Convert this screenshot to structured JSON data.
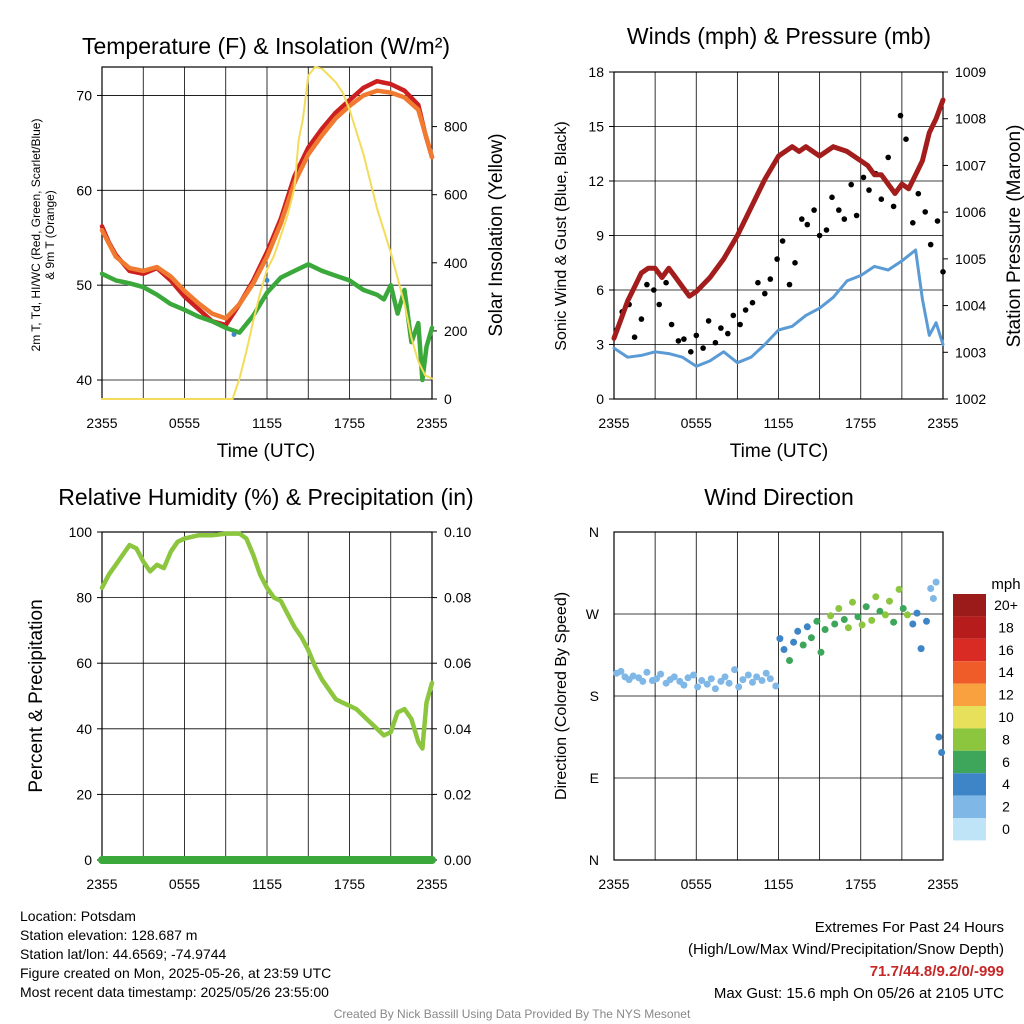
{
  "panels": {
    "temperature": {
      "title": "Temperature (F) & Insolation (W/m²)",
      "left_ylabel_line1": "2m T, Td, HI/WC (Red, Green, Scarlet/Blue)",
      "left_ylabel_line2": "& 9m T (Orange)",
      "right_ylabel": "Solar Insolation (Yellow)",
      "xlabel": "Time (UTC)"
    },
    "winds": {
      "title": "Winds (mph) & Pressure (mb)",
      "left_ylabel": "Sonic Wind & Gust (Blue, Black)",
      "right_ylabel": "Station Pressure (Maroon)",
      "xlabel": "Time (UTC)"
    },
    "humidity": {
      "title": "Relative Humidity (%) & Precipitation (in)",
      "left_ylabel": "Percent & Precipitation"
    },
    "direction": {
      "title": "Wind Direction",
      "left_ylabel": "Direction (Colored By Speed)",
      "legend_title": "mph"
    }
  },
  "colors": {
    "temp": "#cc2020",
    "nine_m_temp": "#f07a30",
    "dewpoint": "#3aa83a",
    "wind_chill": "#3f88c5",
    "insolation": "#f4dc5a",
    "pressure": "#a31d1d",
    "wind": "#5b9bd5",
    "gust": "#000000",
    "rh": "#8cc63f",
    "precip": "#3aa83a"
  },
  "info": {
    "location": "Location: Potsdam",
    "elevation": "Station elevation: 128.687 m",
    "latlon": "Station lat/lon: 44.6569; -74.9744",
    "created": "Figure created on Mon, 2025-05-26, at 23:59 UTC",
    "recent": "Most recent data timestamp: 2025/05/26 23:55:00"
  },
  "extremes": {
    "title": "Extremes For Past 24 Hours",
    "subtitle": "(High/Low/Max Wind/Precipitation/Snow Depth)",
    "values": "71.7/44.8/9.2/0/-999",
    "gust": "Max Gust: 15.6 mph On 05/26 at 2105 UTC"
  },
  "credit": "Created By Nick Bassill Using Data Provided By The NYS Mesonet",
  "chart_data": [
    {
      "type": "line",
      "title": "Temperature (F) & Insolation (W/m²)",
      "xlabel": "Time (UTC)",
      "ylabel": "2m T, Td, HI/WC (Red, Green, Scarlet/Blue) & 9m T (Orange)",
      "y2label": "Solar Insolation (Yellow)",
      "x_ticks": [
        "2355",
        "0555",
        "1155",
        "1755",
        "2355"
      ],
      "xlim_hours": [
        0,
        24
      ],
      "ylim": [
        38,
        73
      ],
      "y_ticks": [
        40,
        50,
        60,
        70
      ],
      "y2lim": [
        0,
        975
      ],
      "y2_ticks": [
        0,
        200,
        400,
        600,
        800
      ],
      "grid": true,
      "series": [
        {
          "name": "2m T",
          "color": "#cc2020",
          "axis": "left",
          "x": [
            0,
            0.5,
            1,
            2,
            3,
            4,
            5,
            6,
            7,
            8,
            9,
            10,
            11,
            12,
            13,
            14,
            15,
            16,
            17,
            18,
            19,
            20,
            21,
            22,
            23,
            23.5,
            24
          ],
          "y": [
            56.2,
            54.5,
            53.2,
            51.5,
            51.2,
            51.8,
            50.5,
            48.8,
            47.5,
            46.2,
            45.8,
            48.0,
            50.5,
            53.5,
            57.0,
            61.5,
            64.5,
            66.5,
            68.2,
            69.5,
            70.8,
            71.5,
            71.2,
            70.5,
            69.0,
            66.0,
            63.5
          ]
        },
        {
          "name": "9m T",
          "color": "#f07a30",
          "axis": "left",
          "x": [
            0,
            1,
            2,
            3,
            4,
            5,
            6,
            7,
            8,
            9,
            10,
            11,
            12,
            13,
            14,
            15,
            16,
            17,
            18,
            19,
            20,
            21,
            22,
            23,
            24
          ],
          "y": [
            55.8,
            53.0,
            51.8,
            51.5,
            51.9,
            50.9,
            49.4,
            48.1,
            47.0,
            46.5,
            48.0,
            50.2,
            53.0,
            56.5,
            60.8,
            63.8,
            65.8,
            67.6,
            68.9,
            70.0,
            70.5,
            70.3,
            69.8,
            68.5,
            63.5
          ]
        },
        {
          "name": "2m Td",
          "color": "#3aa83a",
          "axis": "left",
          "x": [
            0,
            1,
            2,
            3,
            4,
            5,
            6,
            7,
            8,
            9,
            10,
            11,
            12,
            13,
            14,
            15,
            16,
            17,
            18,
            19,
            20,
            20.5,
            21,
            21.5,
            22,
            22.5,
            23,
            23.3,
            23.6,
            24
          ],
          "y": [
            51.2,
            50.5,
            50.2,
            49.8,
            49.0,
            48.0,
            47.4,
            46.7,
            46.2,
            45.5,
            45.0,
            46.8,
            49.2,
            50.8,
            51.5,
            52.2,
            51.5,
            51.0,
            50.5,
            49.5,
            49.0,
            48.5,
            50.0,
            47.0,
            49.5,
            44.0,
            46.0,
            40.0,
            43.5,
            45.5
          ]
        },
        {
          "name": "HI/WC",
          "color": "#3f88c5",
          "axis": "left",
          "x": [
            9.6,
            12
          ],
          "y": [
            44.8,
            50.5
          ]
        },
        {
          "name": "Solar Insolation",
          "color": "#f4dc5a",
          "axis": "right",
          "x": [
            0,
            1,
            2,
            3,
            4,
            5,
            6,
            7,
            8,
            9,
            9.5,
            10,
            10.5,
            11,
            11.5,
            12,
            12.5,
            13,
            13.5,
            14,
            14.3,
            14.6,
            15,
            15.5,
            16,
            16.5,
            17,
            17.5,
            18,
            19,
            20,
            21,
            22,
            22.5,
            23,
            23.5,
            24
          ],
          "y": [
            0,
            0,
            0,
            0,
            0,
            0,
            0,
            0,
            0,
            0,
            0,
            60,
            140,
            230,
            310,
            380,
            420,
            480,
            540,
            620,
            760,
            820,
            950,
            975,
            970,
            950,
            930,
            900,
            850,
            720,
            560,
            430,
            280,
            180,
            110,
            70,
            60
          ]
        }
      ]
    },
    {
      "type": "line",
      "title": "Winds (mph) & Pressure (mb)",
      "xlabel": "Time (UTC)",
      "ylabel": "Sonic Wind & Gust (Blue, Black)",
      "y2label": "Station Pressure (Maroon)",
      "x_ticks": [
        "2355",
        "0555",
        "1155",
        "1755",
        "2355"
      ],
      "xlim_hours": [
        0,
        24
      ],
      "ylim": [
        0,
        18
      ],
      "y_ticks": [
        0,
        3,
        6,
        9,
        12,
        15,
        18
      ],
      "y2lim": [
        1002,
        1009
      ],
      "y2_ticks": [
        1002,
        1003,
        1004,
        1005,
        1006,
        1007,
        1008,
        1009
      ],
      "grid": true,
      "series": [
        {
          "name": "Sonic Wind",
          "color": "#5b9bd5",
          "axis": "left",
          "x": [
            0,
            1,
            2,
            3,
            4,
            5,
            6,
            7,
            8,
            9,
            10,
            11,
            12,
            13,
            14,
            15,
            16,
            17,
            18,
            19,
            20,
            21,
            22,
            22.5,
            23,
            23.5,
            24
          ],
          "y": [
            2.8,
            2.3,
            2.4,
            2.6,
            2.5,
            2.3,
            1.8,
            2.1,
            2.6,
            2.0,
            2.3,
            3.0,
            3.8,
            4.0,
            4.6,
            5.0,
            5.6,
            6.5,
            6.8,
            7.3,
            7.1,
            7.6,
            8.2,
            5.5,
            3.5,
            4.2,
            3.0
          ]
        },
        {
          "name": "Gust",
          "color": "#000000",
          "axis": "left",
          "style": "points",
          "x": [
            0.2,
            0.6,
            1.1,
            1.5,
            2.0,
            2.4,
            2.9,
            3.3,
            3.8,
            4.2,
            4.7,
            5.1,
            5.6,
            6.0,
            6.5,
            6.9,
            7.4,
            7.8,
            8.3,
            8.7,
            9.2,
            9.6,
            10.1,
            10.5,
            11.0,
            11.4,
            11.9,
            12.3,
            12.8,
            13.2,
            13.7,
            14.1,
            14.6,
            15.0,
            15.5,
            15.9,
            16.4,
            16.8,
            17.3,
            17.7,
            18.2,
            18.6,
            19.1,
            19.5,
            20.0,
            20.4,
            20.9,
            21.3,
            21.8,
            22.2,
            22.7,
            23.1,
            23.6,
            24.0
          ],
          "y": [
            3.8,
            4.8,
            5.2,
            3.4,
            4.4,
            6.3,
            6.0,
            5.2,
            6.4,
            4.1,
            3.2,
            3.3,
            2.6,
            3.5,
            2.8,
            4.3,
            3.1,
            3.9,
            3.6,
            4.6,
            4.1,
            4.9,
            5.3,
            6.4,
            5.8,
            6.6,
            7.7,
            8.7,
            6.3,
            7.5,
            9.9,
            9.6,
            10.4,
            9.0,
            9.3,
            11.1,
            10.4,
            9.9,
            11.8,
            10.1,
            12.2,
            11.5,
            12.4,
            11.0,
            13.3,
            10.6,
            15.6,
            14.3,
            9.7,
            11.3,
            10.3,
            8.5,
            9.8,
            7.0
          ]
        },
        {
          "name": "Station Pressure",
          "color": "#a31d1d",
          "axis": "right",
          "x": [
            0,
            0.5,
            1,
            1.5,
            2,
            2.5,
            3,
            3.5,
            4,
            4.5,
            5,
            5.5,
            6,
            7,
            8,
            9,
            10,
            11,
            12,
            13,
            13.5,
            14,
            15,
            16,
            17,
            18,
            18.5,
            19,
            19.5,
            20,
            20.5,
            21,
            21.5,
            22,
            22.5,
            23,
            23.5,
            24
          ],
          "y": [
            1003.3,
            1003.7,
            1004.1,
            1004.4,
            1004.7,
            1004.8,
            1004.8,
            1004.6,
            1004.8,
            1004.6,
            1004.4,
            1004.2,
            1004.3,
            1004.6,
            1005.0,
            1005.5,
            1006.1,
            1006.7,
            1007.2,
            1007.4,
            1007.3,
            1007.4,
            1007.2,
            1007.4,
            1007.3,
            1007.1,
            1007.0,
            1006.8,
            1006.8,
            1006.6,
            1006.4,
            1006.6,
            1006.5,
            1006.8,
            1007.1,
            1007.7,
            1008.0,
            1008.4
          ]
        }
      ]
    },
    {
      "type": "line",
      "title": "Relative Humidity (%) & Precipitation (in)",
      "ylabel": "Percent & Precipitation",
      "x_ticks": [
        "2355",
        "0555",
        "1155",
        "1755",
        "2355"
      ],
      "xlim_hours": [
        0,
        24
      ],
      "ylim": [
        0,
        100
      ],
      "y_ticks": [
        0,
        20,
        40,
        60,
        80,
        100
      ],
      "y2lim": [
        0,
        0.1
      ],
      "y2_ticks": [
        "0.00",
        "0.02",
        "0.04",
        "0.06",
        "0.08",
        "0.10"
      ],
      "grid": true,
      "series": [
        {
          "name": "Relative Humidity",
          "color": "#8cc63f",
          "axis": "left",
          "x": [
            0,
            0.5,
            1,
            1.5,
            2,
            2.5,
            3,
            3.5,
            4,
            4.5,
            5,
            5.5,
            6,
            7,
            8,
            9,
            10,
            10.5,
            11,
            11.5,
            12,
            12.5,
            13,
            13.5,
            14,
            14.5,
            15,
            15.5,
            16,
            16.5,
            17,
            17.5,
            18,
            18.5,
            19,
            19.5,
            20,
            20.5,
            21,
            21.5,
            22,
            22.5,
            23,
            23.3,
            23.6,
            24
          ],
          "y": [
            83,
            87,
            90,
            93,
            96,
            95,
            91,
            88,
            90,
            89,
            94,
            97,
            98,
            99,
            99,
            99.5,
            99.5,
            98,
            93,
            87,
            83,
            80,
            79,
            75,
            71,
            68,
            64,
            59,
            55,
            52,
            49,
            48,
            47,
            46,
            44,
            42,
            40,
            38,
            39,
            45,
            46,
            43,
            36,
            34,
            48,
            54
          ]
        },
        {
          "name": "Precipitation",
          "color": "#3aa83a",
          "axis": "right",
          "x": [
            0,
            24
          ],
          "y": [
            0,
            0
          ]
        }
      ]
    },
    {
      "type": "scatter",
      "title": "Wind Direction",
      "ylabel": "Direction (Colored By Speed)",
      "x_ticks": [
        "2355",
        "0555",
        "1155",
        "1755",
        "2355"
      ],
      "xlim_hours": [
        0,
        24
      ],
      "y_ticks": [
        "N",
        "E",
        "S",
        "W",
        "N"
      ],
      "ylim_degrees": [
        0,
        360
      ],
      "legend_title": "mph",
      "legend_placement": "right",
      "color_scale": [
        {
          "label": "20+",
          "color": "#9b1b1b"
        },
        {
          "label": "18",
          "color": "#b71c1c"
        },
        {
          "label": "16",
          "color": "#d92a24"
        },
        {
          "label": "14",
          "color": "#ef5c2a"
        },
        {
          "label": "12",
          "color": "#f9a03f"
        },
        {
          "label": "10",
          "color": "#e6e05a"
        },
        {
          "label": "8",
          "color": "#8cc63f"
        },
        {
          "label": "6",
          "color": "#3ea65b"
        },
        {
          "label": "4",
          "color": "#3d85c6"
        },
        {
          "label": "2",
          "color": "#7fb8e6"
        },
        {
          "label": "0",
          "color": "#bfe3f7"
        }
      ],
      "points": {
        "x": [
          0.2,
          0.5,
          0.8,
          1.1,
          1.4,
          1.8,
          2.1,
          2.4,
          2.8,
          3.1,
          3.4,
          3.8,
          4.1,
          4.4,
          4.8,
          5.1,
          5.4,
          5.8,
          6.1,
          6.4,
          6.8,
          7.1,
          7.4,
          7.8,
          8.1,
          8.4,
          8.8,
          9.1,
          9.4,
          9.8,
          10.1,
          10.4,
          10.8,
          11.1,
          11.4,
          11.8,
          12.1,
          12.4,
          12.8,
          13.1,
          13.4,
          13.8,
          14.1,
          14.4,
          14.8,
          15.1,
          15.4,
          15.8,
          16.1,
          16.4,
          16.8,
          17.1,
          17.4,
          17.8,
          18.1,
          18.4,
          18.8,
          19.1,
          19.4,
          19.8,
          20.1,
          20.4,
          20.8,
          21.1,
          21.4,
          21.8,
          22.1,
          22.4,
          22.8,
          23.1,
          23.3,
          23.5,
          23.7,
          23.9
        ],
        "y": [
          205,
          207,
          201,
          198,
          202,
          200,
          196,
          206,
          197,
          199,
          204,
          194,
          198,
          201,
          196,
          192,
          200,
          203,
          190,
          197,
          193,
          199,
          188,
          196,
          201,
          194,
          209,
          190,
          198,
          203,
          195,
          201,
          197,
          205,
          199,
          191,
          243,
          231,
          219,
          239,
          251,
          236,
          256,
          244,
          262,
          228,
          253,
          268,
          259,
          276,
          264,
          255,
          283,
          267,
          258,
          278,
          263,
          289,
          273,
          269,
          284,
          261,
          297,
          276,
          269,
          259,
          271,
          232,
          262,
          298,
          287,
          305,
          135,
          118
        ],
        "speed": [
          1.5,
          2,
          1.5,
          2,
          1,
          1.5,
          2,
          1.5,
          2,
          1,
          1.5,
          2,
          1.5,
          1,
          2,
          1.5,
          1,
          2,
          1.5,
          2,
          1,
          1.5,
          2,
          1.5,
          1,
          2,
          1.5,
          1,
          2,
          1.5,
          2,
          1.5,
          1,
          2,
          1.5,
          2,
          4.5,
          4,
          5,
          3.5,
          4,
          5,
          4.5,
          5.5,
          6,
          5,
          6.5,
          7,
          6,
          7.5,
          6.5,
          8,
          7,
          6.5,
          7.5,
          6,
          7,
          8.5,
          6,
          7.5,
          8,
          5,
          7,
          6.5,
          8,
          4.5,
          3,
          3.5,
          3,
          2.5,
          2,
          2.5,
          4,
          3.5
        ]
      }
    }
  ]
}
